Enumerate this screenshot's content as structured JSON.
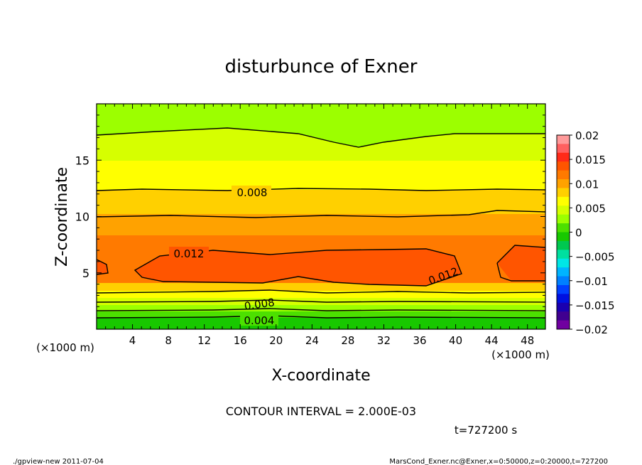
{
  "chart_data": {
    "type": "heatmap",
    "title": "disturbunce of Exner",
    "xlabel": "X-coordinate",
    "ylabel": "Z-coordinate",
    "x_unit_label_left": "(×1000 m)",
    "x_unit_label_right": "(×1000 m)",
    "xlim": [
      0,
      50
    ],
    "ylim": [
      0,
      20
    ],
    "x_ticks": [
      "4",
      "8",
      "12",
      "16",
      "20",
      "24",
      "28",
      "32",
      "36",
      "40",
      "44",
      "48"
    ],
    "y_ticks": [
      "5",
      "10",
      "15"
    ],
    "contour_labels": [
      "0.008",
      "0.012",
      "0.012",
      "0.008",
      "0.004"
    ],
    "colorbar": {
      "ticks": [
        "0.02",
        "0.015",
        "0.01",
        "0.005",
        "0",
        "−0.005",
        "−0.01",
        "−0.015",
        "−0.02"
      ],
      "levels": [
        0.02,
        0.015,
        0.01,
        0.005,
        0,
        -0.005,
        -0.01,
        -0.015,
        -0.02
      ],
      "colors": [
        "#ff9a9a",
        "#ff6060",
        "#ff2a18",
        "#ff5500",
        "#ff7a00",
        "#ffa200",
        "#ffd000",
        "#ffff00",
        "#d6ff00",
        "#9cff00",
        "#4ce000",
        "#18c800",
        "#00c850",
        "#00e0a0",
        "#00e6e6",
        "#00b4ff",
        "#0080ff",
        "#0040ff",
        "#0010e0",
        "#1a00b0",
        "#400090",
        "#7000a0"
      ]
    },
    "contour_interval_text": "CONTOUR INTERVAL = 2.000E-03",
    "time_text": "t=727200 s"
  },
  "footer": {
    "left": "./gpview-new  2011-07-04",
    "right": "MarsCond_Exner.nc@Exner,x=0:50000,z=0:20000,t=727200"
  }
}
